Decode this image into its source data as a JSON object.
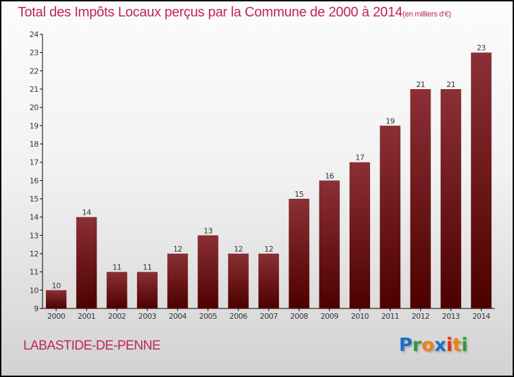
{
  "chart_data": {
    "type": "bar",
    "title": "Total des Impôts Locaux perçus par la Commune de 2000 à 2014",
    "subtitle": "(en milliers d'€)",
    "categories": [
      "2000",
      "2001",
      "2002",
      "2003",
      "2004",
      "2005",
      "2006",
      "2007",
      "2008",
      "2009",
      "2010",
      "2011",
      "2012",
      "2013",
      "2014"
    ],
    "values": [
      10,
      14,
      11,
      11,
      12,
      13,
      12,
      12,
      15,
      16,
      17,
      19,
      21,
      21,
      23
    ],
    "ylim": [
      9,
      24
    ],
    "yticks": [
      9,
      10,
      11,
      12,
      13,
      14,
      15,
      16,
      17,
      18,
      19,
      20,
      21,
      22,
      23,
      24
    ],
    "xlabel": "",
    "ylabel": "",
    "bar_color_top": "#8b3036",
    "bar_color_bottom": "#4d0000"
  },
  "commune": "LABASTIDE-DE-PENNE",
  "logo": {
    "text": "Proxiti",
    "letters": [
      [
        "P",
        "#1a6fc4"
      ],
      [
        "r",
        "#2a9a3a"
      ],
      [
        "o",
        "#f08010"
      ],
      [
        "x",
        "#1a6fc4"
      ],
      [
        "i",
        "#e03010"
      ],
      [
        "t",
        "#f08010"
      ],
      [
        "i",
        "#2a9a3a"
      ]
    ]
  }
}
